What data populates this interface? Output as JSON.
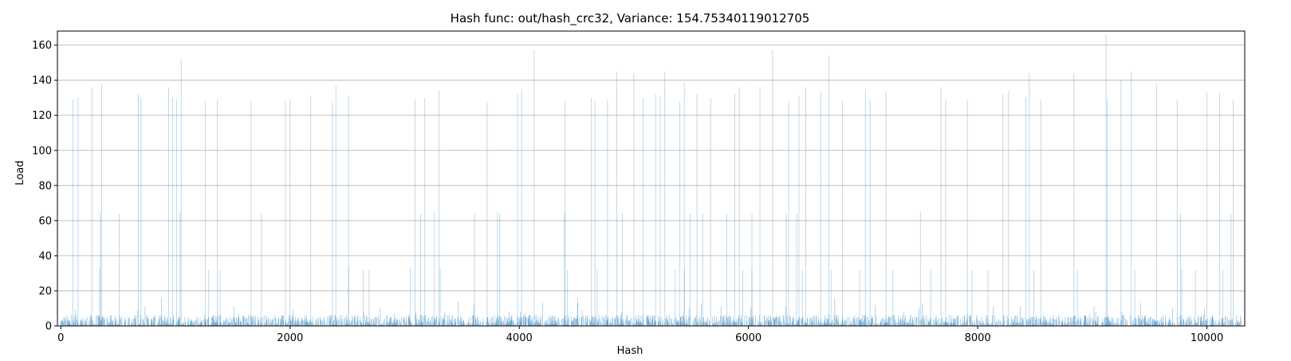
{
  "chart_data": {
    "type": "bar",
    "title": "Hash func: out/hash_crc32, Variance: 154.75340119012705",
    "xlabel": "Hash",
    "ylabel": "Load",
    "xlim": [
      -30,
      10330
    ],
    "ylim": [
      0,
      168
    ],
    "x_ticks": [
      0,
      2000,
      4000,
      6000,
      8000,
      10000
    ],
    "x_tick_labels": [
      "0",
      "2000",
      "4000",
      "6000",
      "8000",
      "10000"
    ],
    "y_ticks": [
      0,
      20,
      40,
      60,
      80,
      100,
      120,
      140,
      160
    ],
    "y_tick_labels": [
      "0",
      "20",
      "40",
      "60",
      "80",
      "100",
      "120",
      "140",
      "160"
    ],
    "grid": "horizontal",
    "bar_color": "#1f77b4",
    "num_buckets": 10300,
    "baseline_load_max": 6,
    "spikes": [
      {
        "x": 105,
        "y": 129
      },
      {
        "x": 150,
        "y": 130
      },
      {
        "x": 270,
        "y": 136
      },
      {
        "x": 345,
        "y": 65
      },
      {
        "x": 355,
        "y": 138
      },
      {
        "x": 510,
        "y": 64
      },
      {
        "x": 675,
        "y": 132
      },
      {
        "x": 700,
        "y": 130
      },
      {
        "x": 940,
        "y": 136
      },
      {
        "x": 975,
        "y": 130
      },
      {
        "x": 1010,
        "y": 129
      },
      {
        "x": 1040,
        "y": 65
      },
      {
        "x": 1050,
        "y": 152
      },
      {
        "x": 1260,
        "y": 128
      },
      {
        "x": 1365,
        "y": 129
      },
      {
        "x": 1660,
        "y": 128
      },
      {
        "x": 1750,
        "y": 64
      },
      {
        "x": 1960,
        "y": 128
      },
      {
        "x": 2000,
        "y": 129
      },
      {
        "x": 2180,
        "y": 131
      },
      {
        "x": 2370,
        "y": 128
      },
      {
        "x": 2400,
        "y": 137
      },
      {
        "x": 2510,
        "y": 131
      },
      {
        "x": 3090,
        "y": 129
      },
      {
        "x": 3140,
        "y": 64
      },
      {
        "x": 3175,
        "y": 130
      },
      {
        "x": 3260,
        "y": 65
      },
      {
        "x": 3300,
        "y": 134
      },
      {
        "x": 3610,
        "y": 64
      },
      {
        "x": 3720,
        "y": 128
      },
      {
        "x": 3810,
        "y": 65
      },
      {
        "x": 3830,
        "y": 64
      },
      {
        "x": 3985,
        "y": 132
      },
      {
        "x": 4020,
        "y": 135
      },
      {
        "x": 4130,
        "y": 157
      },
      {
        "x": 4395,
        "y": 65
      },
      {
        "x": 4400,
        "y": 128
      },
      {
        "x": 4630,
        "y": 130
      },
      {
        "x": 4660,
        "y": 128
      },
      {
        "x": 4770,
        "y": 129
      },
      {
        "x": 4850,
        "y": 145
      },
      {
        "x": 4900,
        "y": 64
      },
      {
        "x": 5000,
        "y": 144
      },
      {
        "x": 5080,
        "y": 130
      },
      {
        "x": 5190,
        "y": 132
      },
      {
        "x": 5230,
        "y": 131
      },
      {
        "x": 5270,
        "y": 145
      },
      {
        "x": 5360,
        "y": 32
      },
      {
        "x": 5400,
        "y": 128
      },
      {
        "x": 5440,
        "y": 139
      },
      {
        "x": 5490,
        "y": 64
      },
      {
        "x": 5550,
        "y": 132
      },
      {
        "x": 5600,
        "y": 64
      },
      {
        "x": 5670,
        "y": 130
      },
      {
        "x": 5810,
        "y": 64
      },
      {
        "x": 5880,
        "y": 132
      },
      {
        "x": 5920,
        "y": 136
      },
      {
        "x": 6030,
        "y": 64
      },
      {
        "x": 6100,
        "y": 136
      },
      {
        "x": 6210,
        "y": 157
      },
      {
        "x": 6330,
        "y": 64
      },
      {
        "x": 6350,
        "y": 128
      },
      {
        "x": 6420,
        "y": 64
      },
      {
        "x": 6440,
        "y": 131
      },
      {
        "x": 6500,
        "y": 136
      },
      {
        "x": 6630,
        "y": 134
      },
      {
        "x": 6700,
        "y": 154
      },
      {
        "x": 6820,
        "y": 128
      },
      {
        "x": 7020,
        "y": 135
      },
      {
        "x": 7060,
        "y": 129
      },
      {
        "x": 7200,
        "y": 133
      },
      {
        "x": 7500,
        "y": 65
      },
      {
        "x": 7680,
        "y": 136
      },
      {
        "x": 7720,
        "y": 129
      },
      {
        "x": 7910,
        "y": 129
      },
      {
        "x": 8220,
        "y": 132
      },
      {
        "x": 8270,
        "y": 134
      },
      {
        "x": 8420,
        "y": 130
      },
      {
        "x": 8450,
        "y": 144
      },
      {
        "x": 8550,
        "y": 129
      },
      {
        "x": 8840,
        "y": 144
      },
      {
        "x": 9120,
        "y": 166
      },
      {
        "x": 9130,
        "y": 129
      },
      {
        "x": 9250,
        "y": 140
      },
      {
        "x": 9340,
        "y": 145
      },
      {
        "x": 9560,
        "y": 138
      },
      {
        "x": 9740,
        "y": 129
      },
      {
        "x": 9770,
        "y": 64
      },
      {
        "x": 10000,
        "y": 133
      },
      {
        "x": 10110,
        "y": 133
      },
      {
        "x": 10230,
        "y": 129
      }
    ],
    "mid_spikes": [
      {
        "x": 340,
        "y": 33
      },
      {
        "x": 1290,
        "y": 32
      },
      {
        "x": 1390,
        "y": 32
      },
      {
        "x": 2510,
        "y": 33
      },
      {
        "x": 2640,
        "y": 32
      },
      {
        "x": 2690,
        "y": 32
      },
      {
        "x": 3050,
        "y": 33
      },
      {
        "x": 3310,
        "y": 33
      },
      {
        "x": 4420,
        "y": 32
      },
      {
        "x": 4510,
        "y": 16
      },
      {
        "x": 4680,
        "y": 32
      },
      {
        "x": 5440,
        "y": 32
      },
      {
        "x": 5950,
        "y": 32
      },
      {
        "x": 6030,
        "y": 32
      },
      {
        "x": 6470,
        "y": 32
      },
      {
        "x": 6720,
        "y": 32
      },
      {
        "x": 6970,
        "y": 32
      },
      {
        "x": 7260,
        "y": 32
      },
      {
        "x": 7590,
        "y": 32
      },
      {
        "x": 7950,
        "y": 32
      },
      {
        "x": 8090,
        "y": 32
      },
      {
        "x": 8490,
        "y": 32
      },
      {
        "x": 8870,
        "y": 32
      },
      {
        "x": 9370,
        "y": 32
      },
      {
        "x": 9780,
        "y": 32
      },
      {
        "x": 9900,
        "y": 32
      },
      {
        "x": 10140,
        "y": 32
      },
      {
        "x": 10210,
        "y": 64
      }
    ]
  }
}
